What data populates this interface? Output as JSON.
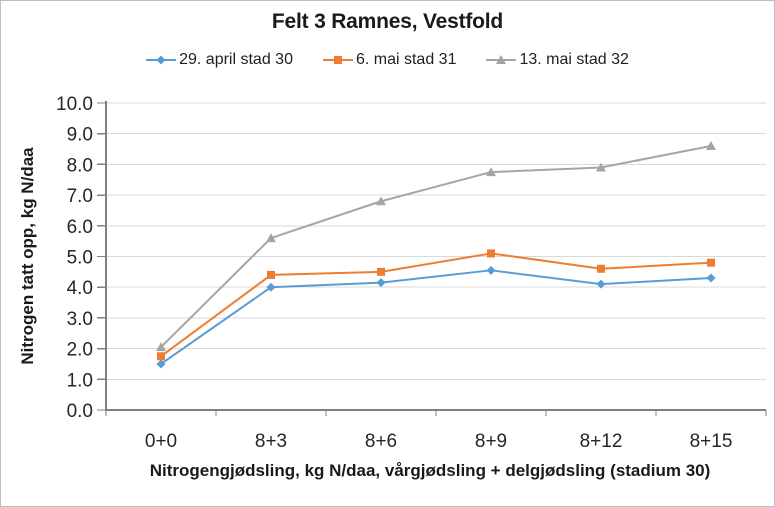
{
  "chart_data": {
    "type": "line",
    "title": "Felt 3 Ramnes, Vestfold",
    "xlabel": "Nitrogengjødsling, kg N/daa, vårgjødsling + delgjødsling (stadium 30)",
    "ylabel": "Nitrogen tatt opp, kg N/daa",
    "categories": [
      "0+0",
      "8+3",
      "8+6",
      "8+9",
      "8+12",
      "8+15"
    ],
    "series": [
      {
        "name": "29. april stad 30",
        "color": "#5B9BD5",
        "marker": "diamond",
        "values": [
          1.5,
          4.0,
          4.15,
          4.55,
          4.1,
          4.3
        ]
      },
      {
        "name": "6. mai stad 31",
        "color": "#ED7D31",
        "marker": "square",
        "values": [
          1.75,
          4.4,
          4.5,
          5.1,
          4.6,
          4.8
        ]
      },
      {
        "name": "13. mai stad 32",
        "color": "#A5A5A5",
        "marker": "triangle",
        "values": [
          2.05,
          5.6,
          6.8,
          7.75,
          7.9,
          8.6
        ]
      }
    ],
    "ylim": [
      0,
      10
    ],
    "ytick_labels": [
      "0.0",
      "1.0",
      "2.0",
      "3.0",
      "4.0",
      "5.0",
      "6.0",
      "7.0",
      "8.0",
      "9.0",
      "10.0"
    ],
    "grid": "horizontal",
    "legend_position": "top",
    "colors": {
      "gridline": "#D9D9D9",
      "axis": "#808080",
      "text": "#262626"
    }
  }
}
